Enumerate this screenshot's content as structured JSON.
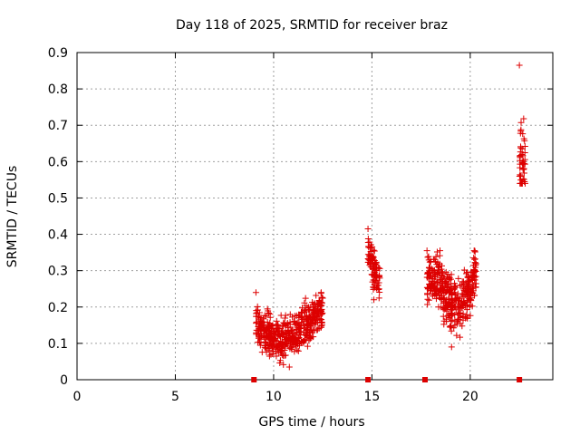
{
  "chart_data": {
    "type": "scatter",
    "title": "Day 118 of 2025, SRMTID for receiver braz",
    "xlabel": "GPS time / hours",
    "ylabel": "SRMTID / TECUs",
    "xlim": [
      0,
      24.2
    ],
    "ylim": [
      0,
      0.9
    ],
    "xticks": [
      0,
      5,
      10,
      15,
      20
    ],
    "yticks": [
      0,
      0.1,
      0.2,
      0.3,
      0.4,
      0.5,
      0.6,
      0.7,
      0.8,
      0.9
    ],
    "ytick_labels": [
      "0",
      "0.1",
      "0.2",
      "0.3",
      "0.4",
      "0.5",
      "0.6",
      "0.7",
      "0.8",
      "0.9"
    ],
    "grid": true,
    "marker_color": "#dd0000",
    "series": [
      {
        "name": "srmtid",
        "marker": "+",
        "clusters": [
          {
            "x_range": [
              9.1,
              12.5
            ],
            "y_range": [
              0.035,
              0.24
            ],
            "trend": [
              [
                9.1,
                0.15
              ],
              [
                10.0,
                0.11
              ],
              [
                11.0,
                0.12
              ],
              [
                12.0,
                0.17
              ],
              [
                12.5,
                0.2
              ]
            ],
            "count": 520
          },
          {
            "x_range": [
              14.8,
              15.4
            ],
            "y_range": [
              0.22,
              0.415
            ],
            "trend": [
              [
                14.8,
                0.36
              ],
              [
                15.05,
                0.31
              ],
              [
                15.4,
                0.26
              ]
            ],
            "count": 90
          },
          {
            "x_range": [
              17.8,
              20.3
            ],
            "y_range": [
              0.09,
              0.355
            ],
            "trend": [
              [
                17.8,
                0.28
              ],
              [
                18.5,
                0.27
              ],
              [
                19.0,
                0.21
              ],
              [
                19.5,
                0.2
              ],
              [
                20.0,
                0.25
              ],
              [
                20.3,
                0.3
              ]
            ],
            "count": 420
          },
          {
            "x_range": [
              22.5,
              22.8
            ],
            "y_range": [
              0.54,
              0.865
            ],
            "trend": [
              [
                22.5,
                0.6
              ],
              [
                22.8,
                0.62
              ]
            ],
            "count": 45
          }
        ]
      },
      {
        "name": "zero-level",
        "marker": "square",
        "points": [
          [
            9.0,
            0
          ],
          [
            14.8,
            0
          ],
          [
            17.7,
            0
          ],
          [
            22.5,
            0
          ]
        ]
      }
    ]
  }
}
